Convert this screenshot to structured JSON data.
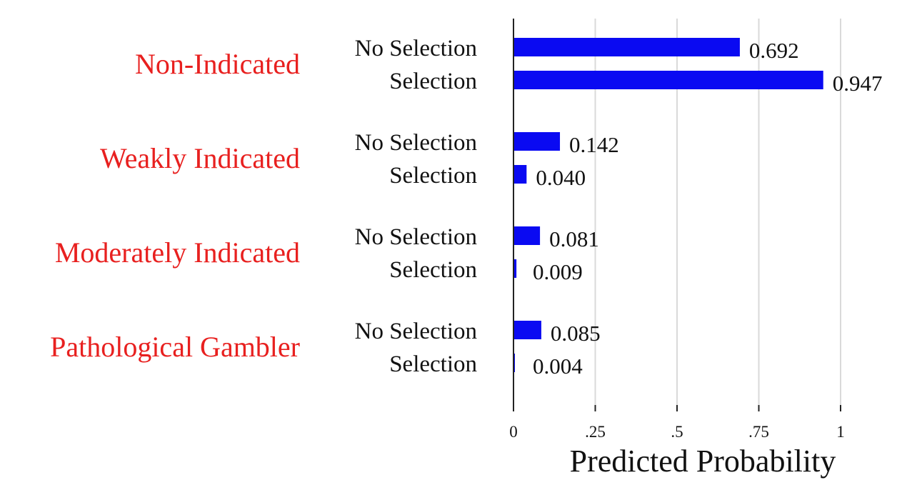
{
  "chart_data": {
    "type": "bar",
    "orientation": "horizontal",
    "xlabel": "Predicted Probability",
    "xlim": [
      0,
      1.15
    ],
    "x_ticks": [
      {
        "value": 0,
        "label": "0"
      },
      {
        "value": 0.25,
        "label": ".25"
      },
      {
        "value": 0.5,
        "label": ".5"
      },
      {
        "value": 0.75,
        "label": ".75"
      },
      {
        "value": 1,
        "label": "1"
      }
    ],
    "grid": true,
    "group_label_color": "#e8201f",
    "bar_color": "#0a0af2",
    "grid_color": "#d9d9d9",
    "groups": [
      {
        "name": "Non-Indicated",
        "bars": [
          {
            "label": "No Selection",
            "value": 0.692,
            "value_label": "0.692"
          },
          {
            "label": "Selection",
            "value": 0.947,
            "value_label": "0.947"
          }
        ]
      },
      {
        "name": "Weakly Indicated",
        "bars": [
          {
            "label": "No Selection",
            "value": 0.142,
            "value_label": "0.142"
          },
          {
            "label": "Selection",
            "value": 0.04,
            "value_label": "0.040"
          }
        ]
      },
      {
        "name": "Moderately Indicated",
        "bars": [
          {
            "label": "No Selection",
            "value": 0.081,
            "value_label": "0.081"
          },
          {
            "label": "Selection",
            "value": 0.009,
            "value_label": "0.009"
          }
        ]
      },
      {
        "name": "Pathological Gambler",
        "bars": [
          {
            "label": "No Selection",
            "value": 0.085,
            "value_label": "0.085"
          },
          {
            "label": "Selection",
            "value": 0.004,
            "value_label": "0.004"
          }
        ]
      }
    ]
  }
}
